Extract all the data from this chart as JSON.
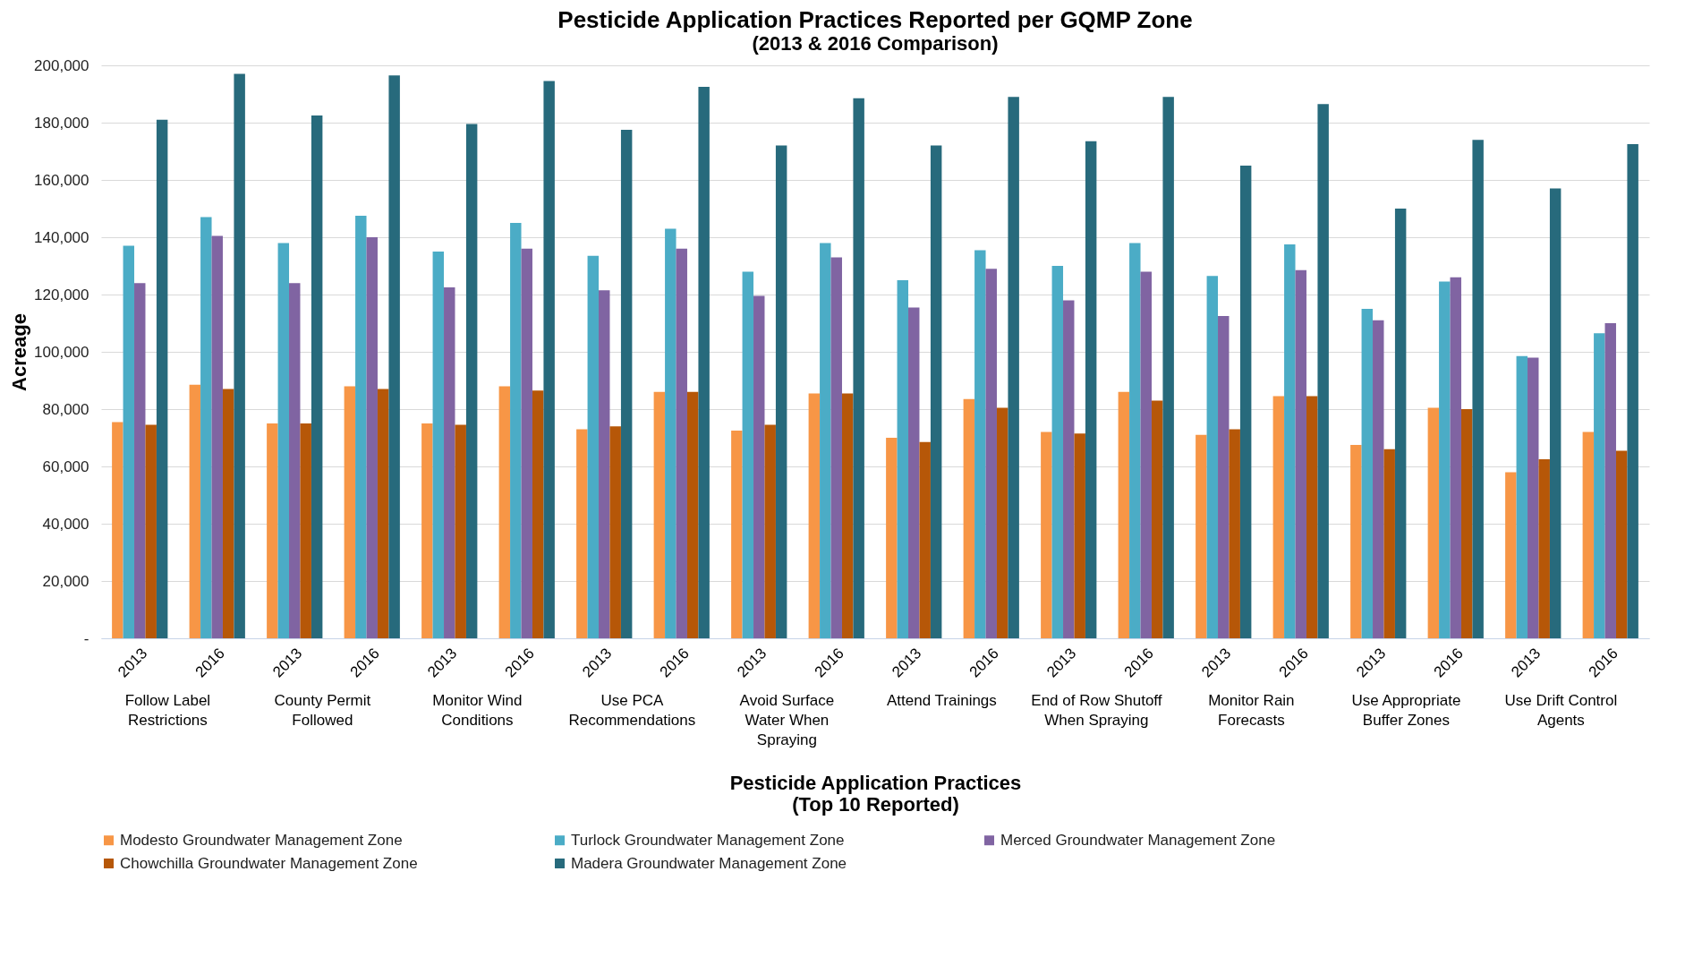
{
  "chart_data": {
    "type": "bar",
    "title": "Pesticide Application Practices Reported per GQMP Zone",
    "subtitle": "(2013 & 2016 Comparison)",
    "xlabel": "Pesticide Application Practices\n(Top 10 Reported)",
    "ylabel": "Acreage",
    "categories": [
      "2013",
      "2016",
      "2013",
      "2016",
      "2013",
      "2016",
      "2013",
      "2016",
      "2013",
      "2016",
      "2013",
      "2016",
      "2013",
      "2016",
      "2013",
      "2016",
      "2013",
      "2016",
      "2013",
      "2016"
    ],
    "annotations": [
      "Follow Label Restrictions",
      "County Permit Followed",
      "Monitor Wind Conditions",
      "Use PCA Recommendations",
      "Avoid Surface Water When Spraying",
      "Attend Trainings",
      "End of Row Shutoff When Spraying",
      "Monitor Rain Forecasts",
      "Use Appropriate Buffer Zones",
      "Use Drift Control Agents"
    ],
    "series": [
      {
        "name": "Modesto Groundwater Management Zone",
        "color": "#f79646",
        "values": [
          75500,
          88500,
          75000,
          88000,
          75000,
          88000,
          73000,
          86000,
          72500,
          85500,
          70000,
          83500,
          72000,
          86000,
          71000,
          84500,
          67500,
          80500,
          58000,
          72000
        ]
      },
      {
        "name": "Turlock Groundwater Management Zone",
        "color": "#4bacc6",
        "values": [
          137000,
          147000,
          138000,
          147500,
          135000,
          145000,
          133500,
          143000,
          128000,
          138000,
          125000,
          135500,
          130000,
          138000,
          126500,
          137500,
          115000,
          124500,
          98500,
          106500
        ]
      },
      {
        "name": "Merced Groundwater Management Zone",
        "color": "#8064a2",
        "values": [
          124000,
          140500,
          124000,
          140000,
          122500,
          136000,
          121500,
          136000,
          119500,
          133000,
          115500,
          129000,
          118000,
          128000,
          112500,
          128500,
          111000,
          126000,
          98000,
          110000
        ]
      },
      {
        "name": "Chowchilla Groundwater Management Zone",
        "color": "#b65708",
        "values": [
          74500,
          87000,
          75000,
          87000,
          74500,
          86500,
          74000,
          86000,
          74500,
          85500,
          68500,
          80500,
          71500,
          83000,
          73000,
          84500,
          66000,
          80000,
          62500,
          65500
        ]
      },
      {
        "name": "Madera Groundwater Management Zone",
        "color": "#276a7c",
        "values": [
          181000,
          197000,
          182500,
          196500,
          179500,
          194500,
          177500,
          192500,
          172000,
          188500,
          172000,
          189000,
          173500,
          189000,
          165000,
          186500,
          150000,
          174000,
          157000,
          172500
        ]
      }
    ],
    "ylim": [
      0,
      200000
    ],
    "yticks": [
      {
        "value": 0,
        "label": "-"
      },
      {
        "value": 20000,
        "label": "20,000"
      },
      {
        "value": 40000,
        "label": "40,000"
      },
      {
        "value": 60000,
        "label": "60,000"
      },
      {
        "value": 80000,
        "label": "80,000"
      },
      {
        "value": 100000,
        "label": "100,000"
      },
      {
        "value": 120000,
        "label": "120,000"
      },
      {
        "value": 140000,
        "label": "140,000"
      },
      {
        "value": 160000,
        "label": "160,000"
      },
      {
        "value": 180000,
        "label": "180,000"
      },
      {
        "value": 200000,
        "label": "200,000"
      }
    ],
    "grid": "y",
    "legend": "bottom"
  }
}
